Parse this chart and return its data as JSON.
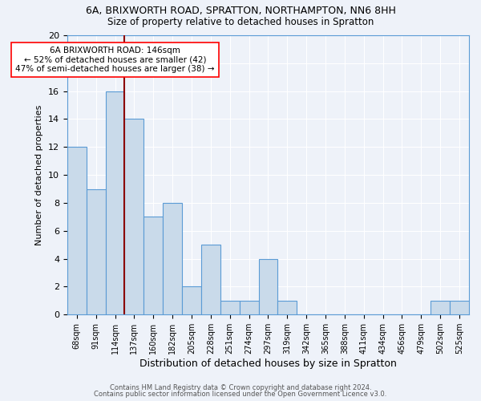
{
  "title1": "6A, BRIXWORTH ROAD, SPRATTON, NORTHAMPTON, NN6 8HH",
  "title2": "Size of property relative to detached houses in Spratton",
  "xlabel": "Distribution of detached houses by size in Spratton",
  "ylabel": "Number of detached properties",
  "footnote1": "Contains HM Land Registry data © Crown copyright and database right 2024.",
  "footnote2": "Contains public sector information licensed under the Open Government Licence v3.0.",
  "categories": [
    "68sqm",
    "91sqm",
    "114sqm",
    "137sqm",
    "160sqm",
    "182sqm",
    "205sqm",
    "228sqm",
    "251sqm",
    "274sqm",
    "297sqm",
    "319sqm",
    "342sqm",
    "365sqm",
    "388sqm",
    "411sqm",
    "434sqm",
    "456sqm",
    "479sqm",
    "502sqm",
    "525sqm"
  ],
  "values": [
    12,
    9,
    16,
    14,
    7,
    8,
    2,
    5,
    1,
    1,
    4,
    1,
    0,
    0,
    0,
    0,
    0,
    0,
    0,
    1,
    1
  ],
  "bar_color": "#c9daea",
  "bar_edge_color": "#5b9bd5",
  "bar_width": 1.0,
  "vline_index": 3.0,
  "vline_color": "#8b0000",
  "annotation_text": "6A BRIXWORTH ROAD: 146sqm\n← 52% of detached houses are smaller (42)\n47% of semi-detached houses are larger (38) →",
  "annotation_box_color": "white",
  "annotation_box_edgecolor": "red",
  "ylim": [
    0,
    20
  ],
  "yticks": [
    0,
    2,
    4,
    6,
    8,
    10,
    12,
    14,
    16,
    18,
    20
  ],
  "bg_color": "#eef2f9",
  "grid_color": "white",
  "title1_fontsize": 9,
  "title2_fontsize": 8.5,
  "xlabel_fontsize": 9,
  "ylabel_fontsize": 8
}
